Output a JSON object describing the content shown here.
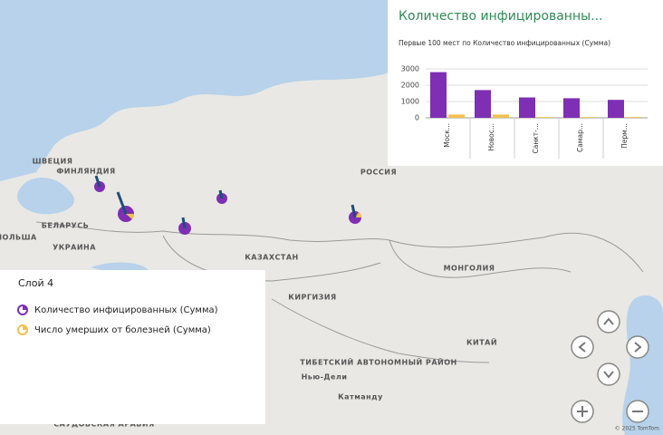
{
  "map": {
    "labels": [
      "ШВЕЦИЯ",
      "ФИНЛЯНДИЯ",
      "РОССИЯ",
      "БЕЛАРУСЬ",
      "ПОЛЬША",
      "УКРАИНА",
      "КАЗАХСТАН",
      "МОНГОЛИЯ",
      "КИРГИЗИЯ",
      "КИТАЙ",
      "ТИБЕТСКИЙ АВТОНОМНЫЙ РАЙОН",
      "Нью-Дели",
      "Катманду",
      "САУДОВСКАЯ АРАВИЯ"
    ],
    "copyright": "© 2025 TomTom"
  },
  "legend": {
    "title": "Слой 4",
    "items": [
      "Количество инфицированных (Сумма)",
      "Число умерших от болезней (Сумма)"
    ]
  },
  "chart_data": {
    "type": "bar",
    "title": "Количество инфицированны...",
    "subtitle": "Первые 100 мест  по Количество инфицированных (Сумма)",
    "categories": [
      "Моск...",
      "Новос...",
      "Санкт-...",
      "Самар...",
      "Перм..."
    ],
    "series": [
      {
        "name": "Количество инфицированных (Сумма)",
        "color": "#7e2fb4",
        "values": [
          2800,
          1700,
          1250,
          1200,
          1100
        ]
      },
      {
        "name": "Число умерших от болезней (Сумма)",
        "color": "#f2c14e",
        "values": [
          200,
          200,
          50,
          50,
          50
        ]
      }
    ],
    "ylim": [
      0,
      3000
    ],
    "yticks": [
      0,
      1000,
      2000,
      3000
    ],
    "grid": true
  }
}
